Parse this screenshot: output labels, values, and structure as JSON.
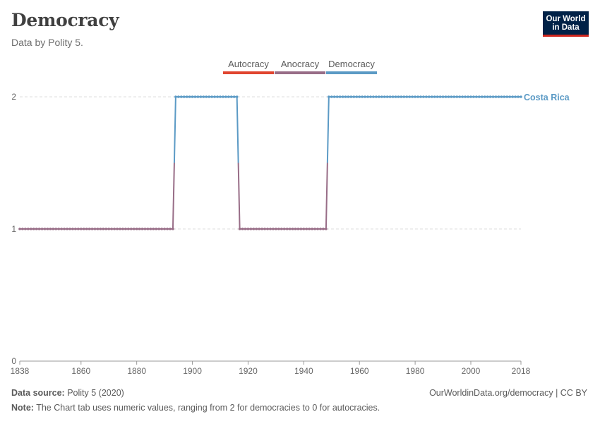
{
  "header": {
    "title": "Democracy",
    "subtitle": "Data by Polity 5.",
    "logo_line1": "Our World",
    "logo_line2": "in Data"
  },
  "legend": [
    {
      "label": "Autocracy",
      "color": "#e0452f"
    },
    {
      "label": "Anocracy",
      "color": "#986d87"
    },
    {
      "label": "Democracy",
      "color": "#5b9ac5"
    }
  ],
  "chart_data": {
    "type": "line",
    "x_ticks": [
      "1838",
      "1860",
      "1880",
      "1900",
      "1920",
      "1940",
      "1960",
      "1980",
      "2000",
      "2018"
    ],
    "y_ticks": [
      "0",
      "1",
      "2"
    ],
    "xlim": [
      1838,
      2018
    ],
    "ylim": [
      0,
      2
    ],
    "grid": "horizontal dashed",
    "series": [
      {
        "name": "Costa Rica",
        "color": "#5b9ac5",
        "segments": [
          {
            "x_start": 1838,
            "x_end": 1893,
            "y": 1
          },
          {
            "x_start": 1894,
            "x_end": 1916,
            "y": 2
          },
          {
            "x_start": 1917,
            "x_end": 1948,
            "y": 1
          },
          {
            "x_start": 1949,
            "x_end": 2018,
            "y": 2
          }
        ]
      }
    ]
  },
  "footer": {
    "source_label": "Data source:",
    "source_text": "Polity 5 (2020)",
    "url": "OurWorldinData.org/democracy | CC BY",
    "note_label": "Note:",
    "note_text": "The Chart tab uses numeric values, ranging from 2 for democracies to 0 for autocracies."
  }
}
